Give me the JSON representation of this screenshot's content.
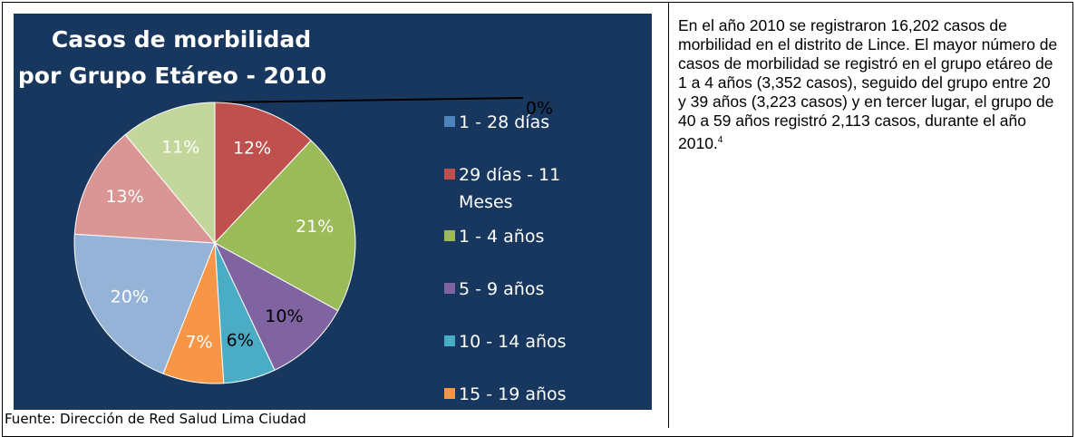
{
  "chart_data": {
    "type": "pie",
    "title": "Casos de morbilidad",
    "subtitle": "por Grupo Etáreo - 2010",
    "categories": [
      "1 - 28 días",
      "29 días - 11 Meses",
      "1 - 4 años",
      "5 - 9 años",
      "10 - 14 años",
      "15 - 19 años",
      null,
      null,
      null
    ],
    "values": [
      0,
      12,
      21,
      10,
      6,
      7,
      20,
      13,
      11
    ],
    "value_labels": [
      "0%",
      "12%",
      "21%",
      "10%",
      "6%",
      "7%",
      "20%",
      "13%",
      "11%"
    ],
    "colors": [
      "#4f81bd",
      "#c0504d",
      "#9bbb59",
      "#8064a2",
      "#4bacc6",
      "#f79646",
      "#95b3d7",
      "#d99694",
      "#c3d69b"
    ],
    "label_colors": [
      "#000000",
      "#ffffff",
      "#ffffff",
      "#000000",
      "#000000",
      "#ffffff",
      "#ffffff",
      "#ffffff",
      "#ffffff"
    ],
    "background": "#17375e"
  },
  "source": "Fuente: Dirección de Red Salud Lima Ciudad",
  "text": "En el año 2010 se registraron 16,202 casos de morbilidad en el distrito de Lince. El mayor número de casos de morbilidad se registró en el grupo etáreo de 1 a 4 años (3,352 casos), seguido del grupo entre 20 y 39 años (3,223 casos) y en tercer lugar, el grupo de 40 a 59 años registró 2,113 casos, durante el año 2010.",
  "footnote_ref": "4"
}
